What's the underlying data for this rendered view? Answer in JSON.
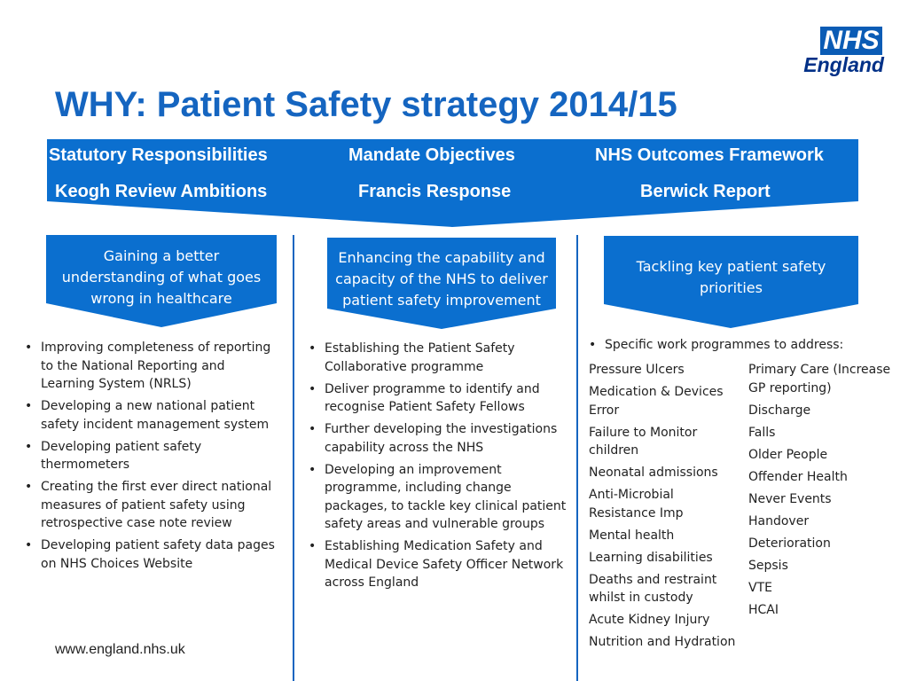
{
  "title": "WHY: Patient Safety strategy 2014/15",
  "logo": {
    "badge": "NHS",
    "name": "England"
  },
  "banner": {
    "row1": [
      "Statutory Responsibilities",
      "Mandate Objectives",
      "NHS Outcomes Framework"
    ],
    "row2": [
      "Keogh Review Ambitions",
      "Francis Response",
      "Berwick Report"
    ]
  },
  "columns": [
    {
      "heading": [
        "Gaining a better",
        "understanding of what goes",
        "wrong in healthcare"
      ],
      "bullets": [
        "Improving completeness of reporting to the National Reporting and Learning System (NRLS)",
        "Developing a new national patient safety incident management system",
        "Developing patient safety thermometers",
        "Creating the first ever direct national measures of patient safety using retrospective case note review",
        "Developing patient safety data pages on NHS Choices Website"
      ]
    },
    {
      "heading": [
        "Enhancing the capability and",
        "capacity of the NHS to deliver",
        "patient safety improvement"
      ],
      "bullets": [
        "Establishing the Patient Safety Collaborative programme",
        "Deliver programme to identify and recognise Patient Safety Fellows",
        "Further developing the investigations capability across the NHS",
        "Developing an improvement programme, including change packages, to tackle key clinical patient safety areas and vulnerable groups",
        "Establishing Medication Safety and Medical Device Safety Officer Network across England"
      ]
    },
    {
      "heading": [
        "Tackling key patient safety",
        "priorities"
      ],
      "intro": "Specific work programmes to address:",
      "list_left": [
        "Pressure Ulcers",
        "Medication & Devices Error",
        "Failure to Monitor children",
        "Neonatal admissions",
        "Anti-Microbial Resistance Imp",
        "Mental health",
        "Learning disabilities",
        "Deaths and restraint whilst in custody",
        "Acute Kidney Injury",
        "Nutrition and Hydration"
      ],
      "list_right": [
        "Primary Care (Increase GP reporting)",
        "Discharge",
        "Falls",
        "Older People",
        "Offender Health",
        "Never Events",
        "Handover",
        "Deterioration",
        "Sepsis",
        "VTE",
        "HCAI"
      ]
    }
  ],
  "footer": "www.england.nhs.uk",
  "colors": {
    "primary": "#1565c0",
    "banner": "#0b6fcf",
    "text": "#222222"
  }
}
